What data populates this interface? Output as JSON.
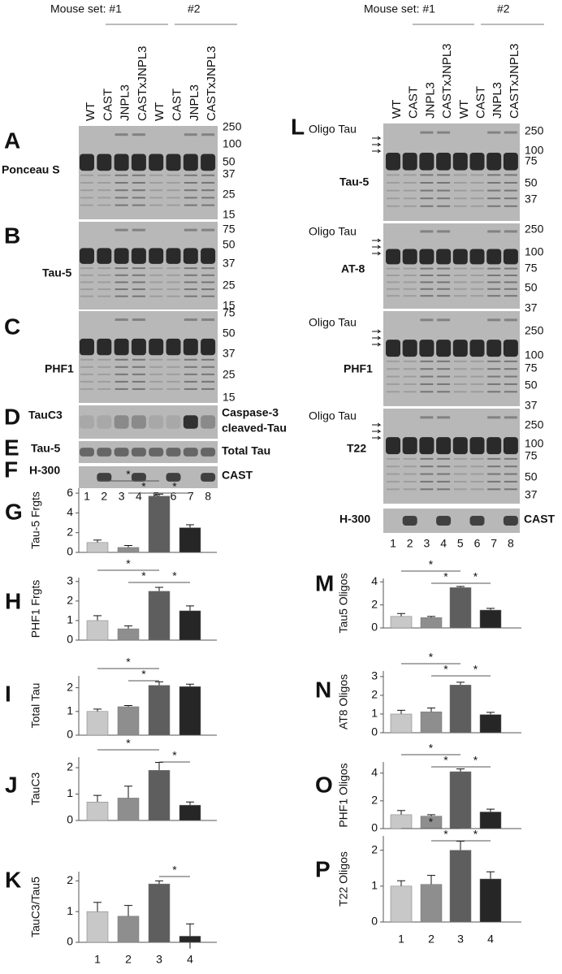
{
  "left_blots": {
    "header": {
      "set1": "Mouse set: #1",
      "set2": "#2"
    },
    "lanes": [
      "WT",
      "CAST",
      "JNPL3",
      "CASTxJNPL3",
      "WT",
      "CAST",
      "JNPL3",
      "CASTxJNPL3"
    ],
    "lane_numbers": [
      "1",
      "2",
      "3",
      "4",
      "5",
      "6",
      "7",
      "8"
    ],
    "panels": [
      {
        "letter": "A",
        "label": "Ponceau S",
        "markers": [
          "250",
          "100",
          "50",
          "37",
          "25",
          "15"
        ]
      },
      {
        "letter": "B",
        "label": "Tau-5",
        "markers": [
          "75",
          "50",
          "37",
          "25",
          "15"
        ]
      },
      {
        "letter": "C",
        "label": "PHF1",
        "markers": [
          "75",
          "50",
          "37",
          "25",
          "15"
        ]
      },
      {
        "letter": "D",
        "label": "TauC3",
        "right_label": [
          "Caspase-3",
          "cleaved-Tau"
        ]
      },
      {
        "letter": "E",
        "label": "Tau-5",
        "right_label": [
          "Total Tau"
        ]
      },
      {
        "letter": "F",
        "label": "H-300",
        "right_label": [
          "CAST"
        ]
      }
    ]
  },
  "right_blots": {
    "letter": "L",
    "header": {
      "set1": "Mouse set: #1",
      "set2": "#2"
    },
    "lanes": [
      "WT",
      "CAST",
      "JNPL3",
      "CASTxJNPL3",
      "WT",
      "CAST",
      "JNPL3",
      "CASTxJNPL3"
    ],
    "lane_numbers": [
      "1",
      "2",
      "3",
      "4",
      "5",
      "6",
      "7",
      "8"
    ],
    "panels": [
      {
        "note": "Oligo Tau",
        "label": "Tau-5",
        "markers": [
          "250",
          "100",
          "75",
          "50",
          "37"
        ]
      },
      {
        "note": "Oligo Tau",
        "label": "AT-8",
        "markers": [
          "250",
          "100",
          "75",
          "50",
          "37"
        ]
      },
      {
        "note": "Oligo Tau",
        "label": "PHF1",
        "markers": [
          "250",
          "100",
          "75",
          "50",
          "37"
        ]
      },
      {
        "note": "Oligo Tau",
        "label": "T22",
        "markers": [
          "250",
          "100",
          "75",
          "50",
          "37"
        ]
      },
      {
        "label": "H-300",
        "right_label": [
          "CAST"
        ]
      }
    ]
  },
  "chart_data": [
    {
      "type": "bar",
      "letter": "G",
      "ylabel": "Tau-5 Frgts",
      "values": [
        1.0,
        0.5,
        5.7,
        2.5
      ],
      "errors": [
        0.25,
        0.2,
        0.2,
        0.3
      ],
      "ylim": [
        0,
        6.5
      ],
      "yticks": [
        0,
        2,
        4,
        6
      ],
      "colors": [
        "#c8c8c8",
        "#8e8e8e",
        "#5e5e5e",
        "#262626"
      ],
      "significance": [
        {
          "bars": [
            0,
            2
          ],
          "label": "*"
        },
        {
          "bars": [
            1,
            2
          ],
          "label": "*"
        },
        {
          "bars": [
            2,
            3
          ],
          "label": "*"
        }
      ]
    },
    {
      "type": "bar",
      "letter": "H",
      "ylabel": "PHF1 Frgts",
      "values": [
        1.0,
        0.58,
        2.5,
        1.5
      ],
      "errors": [
        0.25,
        0.15,
        0.2,
        0.25
      ],
      "ylim": [
        0,
        3.2
      ],
      "yticks": [
        0,
        1,
        2,
        3
      ],
      "colors": [
        "#c8c8c8",
        "#8e8e8e",
        "#5e5e5e",
        "#262626"
      ],
      "significance": [
        {
          "bars": [
            0,
            2
          ],
          "label": "*"
        },
        {
          "bars": [
            1,
            2
          ],
          "label": "*"
        },
        {
          "bars": [
            2,
            3
          ],
          "label": "*"
        }
      ]
    },
    {
      "type": "bar",
      "letter": "I",
      "ylabel": "Total Tau",
      "values": [
        1.0,
        1.2,
        2.1,
        2.05
      ],
      "errors": [
        0.1,
        0.05,
        0.15,
        0.1
      ],
      "ylim": [
        0,
        2.5
      ],
      "yticks": [
        0,
        1,
        2
      ],
      "colors": [
        "#c8c8c8",
        "#8e8e8e",
        "#5e5e5e",
        "#262626"
      ],
      "significance": [
        {
          "bars": [
            0,
            2
          ],
          "label": "*"
        },
        {
          "bars": [
            1,
            2
          ],
          "label": "*"
        }
      ]
    },
    {
      "type": "bar",
      "letter": "J",
      "ylabel": "TauC3",
      "values": [
        0.7,
        0.85,
        1.9,
        0.58
      ],
      "errors": [
        0.25,
        0.45,
        0.3,
        0.12
      ],
      "ylim": [
        0,
        2.4
      ],
      "yticks": [
        0,
        1,
        2
      ],
      "colors": [
        "#c8c8c8",
        "#8e8e8e",
        "#5e5e5e",
        "#262626"
      ],
      "significance": [
        {
          "bars": [
            0,
            2
          ],
          "label": "*"
        },
        {
          "bars": [
            2,
            3
          ],
          "label": "*"
        }
      ]
    },
    {
      "type": "bar",
      "letter": "K",
      "ylabel": "TauC3/Tau5",
      "categories": [
        "1",
        "2",
        "3",
        "4"
      ],
      "values": [
        1.0,
        0.85,
        1.9,
        0.2
      ],
      "errors": [
        0.3,
        0.35,
        0.1,
        0.4
      ],
      "ylim": [
        0,
        2.3
      ],
      "yticks": [
        0,
        1,
        2
      ],
      "colors": [
        "#c8c8c8",
        "#8e8e8e",
        "#5e5e5e",
        "#262626"
      ],
      "significance": [
        {
          "bars": [
            2,
            3
          ],
          "label": "*"
        }
      ]
    },
    {
      "type": "bar",
      "letter": "M",
      "ylabel": "Tau5 Oligos",
      "values": [
        1.0,
        0.9,
        3.5,
        1.55
      ],
      "errors": [
        0.25,
        0.1,
        0.1,
        0.15
      ],
      "ylim": [
        0,
        4.3
      ],
      "yticks": [
        0,
        2,
        4
      ],
      "colors": [
        "#c8c8c8",
        "#8e8e8e",
        "#5e5e5e",
        "#262626"
      ],
      "significance": [
        {
          "bars": [
            0,
            2
          ],
          "label": "*"
        },
        {
          "bars": [
            1,
            2
          ],
          "label": "*"
        },
        {
          "bars": [
            2,
            3
          ],
          "label": "*"
        }
      ]
    },
    {
      "type": "bar",
      "letter": "N",
      "ylabel": "AT8 Oligos",
      "values": [
        1.0,
        1.12,
        2.55,
        0.97
      ],
      "errors": [
        0.2,
        0.2,
        0.15,
        0.12
      ],
      "ylim": [
        0,
        3.3
      ],
      "yticks": [
        0,
        1,
        2,
        3
      ],
      "colors": [
        "#c8c8c8",
        "#8e8e8e",
        "#5e5e5e",
        "#262626"
      ],
      "significance": [
        {
          "bars": [
            0,
            2
          ],
          "label": "*"
        },
        {
          "bars": [
            1,
            2
          ],
          "label": "*"
        },
        {
          "bars": [
            2,
            3
          ],
          "label": "*"
        }
      ]
    },
    {
      "type": "bar",
      "letter": "O",
      "ylabel": "PHF1 Oligos",
      "values": [
        1.0,
        0.9,
        4.1,
        1.2
      ],
      "errors": [
        0.3,
        0.1,
        0.2,
        0.2
      ],
      "ylim": [
        0,
        4.8
      ],
      "yticks": [
        0,
        2,
        4
      ],
      "colors": [
        "#c8c8c8",
        "#8e8e8e",
        "#5e5e5e",
        "#262626"
      ],
      "significance": [
        {
          "bars": [
            0,
            2
          ],
          "label": "*"
        },
        {
          "bars": [
            1,
            2
          ],
          "label": "*"
        },
        {
          "bars": [
            2,
            3
          ],
          "label": "*"
        }
      ]
    },
    {
      "type": "bar",
      "letter": "P",
      "ylabel": "T22 Oligos",
      "categories": [
        "1",
        "2",
        "3",
        "4"
      ],
      "values": [
        1.0,
        1.05,
        2.0,
        1.2
      ],
      "errors": [
        0.15,
        0.25,
        0.25,
        0.2
      ],
      "ylim": [
        0,
        2.4
      ],
      "yticks": [
        0,
        1,
        2
      ],
      "colors": [
        "#c8c8c8",
        "#8e8e8e",
        "#5e5e5e",
        "#262626"
      ],
      "significance": [
        {
          "bars": [
            0,
            2
          ],
          "label": "*"
        },
        {
          "bars": [
            1,
            2
          ],
          "label": "*"
        },
        {
          "bars": [
            2,
            3
          ],
          "label": "*"
        }
      ]
    }
  ]
}
